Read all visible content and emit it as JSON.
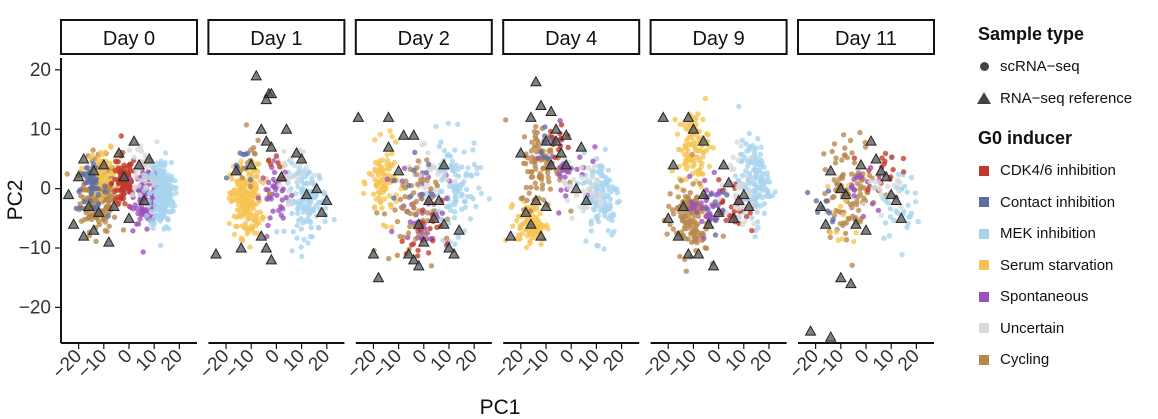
{
  "chart_data": {
    "type": "scatter",
    "xlabel": "PC1",
    "ylabel": "PC2",
    "xlim": [
      -27,
      27
    ],
    "ylim": [
      -26,
      22
    ],
    "xticks": [
      -20,
      -10,
      0,
      10,
      20
    ],
    "xtick_labels": [
      "-20",
      "-10",
      "0",
      "10",
      "20"
    ],
    "yticks": [
      -20,
      -10,
      0,
      10,
      20
    ],
    "ytick_labels": [
      "-20",
      "-10",
      "0",
      "10",
      "20"
    ],
    "panels": [
      {
        "label": "Day 0",
        "clusters": [
          {
            "group": "Cycling",
            "n": 220,
            "cx": -12,
            "cy": -1,
            "sx": 6,
            "sy": 5
          },
          {
            "group": "Serum starvation",
            "n": 70,
            "cx": -10,
            "cy": 3,
            "sx": 5,
            "sy": 3
          },
          {
            "group": "Contact inhibition",
            "n": 40,
            "cx": -15,
            "cy": 0,
            "sx": 5,
            "sy": 3
          },
          {
            "group": "CDK4/6 inhibition",
            "n": 80,
            "cx": -2,
            "cy": 1,
            "sx": 4,
            "sy": 4
          },
          {
            "group": "Spontaneous",
            "n": 130,
            "cx": 7,
            "cy": -1,
            "sx": 4,
            "sy": 4
          },
          {
            "group": "Uncertain",
            "n": 40,
            "cx": 5,
            "cy": 3,
            "sx": 5,
            "sy": 4
          },
          {
            "group": "MEK inhibition",
            "n": 200,
            "cx": 13,
            "cy": -1,
            "sx": 4,
            "sy": 5
          }
        ],
        "reference": [
          [
            -22,
            -6
          ],
          [
            -18,
            -8
          ],
          [
            -14,
            -7
          ],
          [
            -20,
            2
          ],
          [
            -18,
            5
          ],
          [
            -14,
            3
          ],
          [
            -12,
            -4
          ],
          [
            -10,
            4
          ],
          [
            -8,
            -9
          ],
          [
            -6,
            -3
          ],
          [
            -4,
            6
          ],
          [
            -2,
            2
          ],
          [
            0,
            -5
          ],
          [
            2,
            8
          ],
          [
            4,
            4
          ],
          [
            6,
            -2
          ],
          [
            8,
            5
          ],
          [
            -16,
            -3
          ],
          [
            -24,
            -1
          ]
        ]
      },
      {
        "label": "Day 1",
        "clusters": [
          {
            "group": "Serum starvation",
            "n": 200,
            "cx": -12,
            "cy": -2,
            "sx": 5,
            "sy": 5
          },
          {
            "group": "MEK inhibition",
            "n": 130,
            "cx": 12,
            "cy": -2,
            "sx": 7,
            "sy": 5
          },
          {
            "group": "Spontaneous",
            "n": 40,
            "cx": 0,
            "cy": -1,
            "sx": 5,
            "sy": 4
          },
          {
            "group": "Uncertain",
            "n": 30,
            "cx": 5,
            "cy": 3,
            "sx": 6,
            "sy": 4
          },
          {
            "group": "Contact inhibition",
            "n": 12,
            "cx": -15,
            "cy": 4,
            "sx": 4,
            "sy": 3
          },
          {
            "group": "Cycling",
            "n": 15,
            "cx": -8,
            "cy": 4,
            "sx": 6,
            "sy": 5
          },
          {
            "group": "CDK4/6 inhibition",
            "n": 6,
            "cx": 0,
            "cy": 3,
            "sx": 5,
            "sy": 3
          }
        ],
        "reference": [
          [
            -8,
            19
          ],
          [
            -3,
            16
          ],
          [
            -4,
            15
          ],
          [
            -2,
            16
          ],
          [
            -6,
            10
          ],
          [
            -4,
            8
          ],
          [
            -2,
            7
          ],
          [
            4,
            10
          ],
          [
            8,
            6
          ],
          [
            10,
            5
          ],
          [
            12,
            -1
          ],
          [
            16,
            0
          ],
          [
            20,
            -2
          ],
          [
            18,
            -4
          ],
          [
            -14,
            -10
          ],
          [
            -6,
            -8
          ],
          [
            -4,
            -10
          ],
          [
            -2,
            -12
          ],
          [
            -24,
            -11
          ],
          [
            -10,
            4
          ],
          [
            -16,
            3
          ],
          [
            2,
            2
          ]
        ]
      },
      {
        "label": "Day 2",
        "clusters": [
          {
            "group": "Serum starvation",
            "n": 90,
            "cx": -16,
            "cy": 1,
            "sx": 5,
            "sy": 5
          },
          {
            "group": "MEK inhibition",
            "n": 100,
            "cx": 12,
            "cy": 0,
            "sx": 8,
            "sy": 7
          },
          {
            "group": "Spontaneous",
            "n": 45,
            "cx": 0,
            "cy": -3,
            "sx": 8,
            "sy": 6
          },
          {
            "group": "Uncertain",
            "n": 30,
            "cx": 2,
            "cy": 3,
            "sx": 8,
            "sy": 5
          },
          {
            "group": "Cycling",
            "n": 60,
            "cx": -6,
            "cy": -4,
            "sx": 9,
            "sy": 7
          },
          {
            "group": "CDK4/6 inhibition",
            "n": 20,
            "cx": 0,
            "cy": -8,
            "sx": 6,
            "sy": 5
          },
          {
            "group": "Contact inhibition",
            "n": 10,
            "cx": -4,
            "cy": 0,
            "sx": 7,
            "sy": 5
          }
        ],
        "reference": [
          [
            -26,
            12
          ],
          [
            -14,
            12
          ],
          [
            -8,
            9
          ],
          [
            -4,
            9
          ],
          [
            -14,
            7
          ],
          [
            -18,
            -15
          ],
          [
            -6,
            -11
          ],
          [
            -4,
            -12
          ],
          [
            -2,
            -13
          ],
          [
            0,
            -9
          ],
          [
            4,
            -5
          ],
          [
            8,
            -6
          ],
          [
            10,
            -10
          ],
          [
            12,
            -11
          ],
          [
            6,
            -2
          ],
          [
            8,
            4
          ],
          [
            -20,
            -11
          ],
          [
            -10,
            3
          ],
          [
            2,
            -2
          ],
          [
            -2,
            -6
          ],
          [
            14,
            -7
          ]
        ]
      },
      {
        "label": "Day 4",
        "clusters": [
          {
            "group": "Serum starvation",
            "n": 90,
            "cx": -16,
            "cy": -6,
            "sx": 5,
            "sy": 3
          },
          {
            "group": "MEK inhibition",
            "n": 110,
            "cx": 12,
            "cy": -1,
            "sx": 6,
            "sy": 6
          },
          {
            "group": "Cycling",
            "n": 90,
            "cx": -12,
            "cy": 4,
            "sx": 7,
            "sy": 6
          },
          {
            "group": "Spontaneous",
            "n": 30,
            "cx": -2,
            "cy": 4,
            "sx": 8,
            "sy": 5
          },
          {
            "group": "Uncertain",
            "n": 30,
            "cx": 4,
            "cy": 0,
            "sx": 8,
            "sy": 4
          },
          {
            "group": "CDK4/6 inhibition",
            "n": 15,
            "cx": -6,
            "cy": 8,
            "sx": 6,
            "sy": 3
          },
          {
            "group": "Contact inhibition",
            "n": 8,
            "cx": -10,
            "cy": 8,
            "sx": 4,
            "sy": 3
          }
        ],
        "reference": [
          [
            -14,
            18
          ],
          [
            -12,
            14
          ],
          [
            -16,
            12
          ],
          [
            -8,
            13
          ],
          [
            -10,
            8
          ],
          [
            -6,
            8
          ],
          [
            -2,
            9
          ],
          [
            -4,
            6
          ],
          [
            -6,
            10
          ],
          [
            -8,
            4
          ],
          [
            4,
            7
          ],
          [
            6,
            -2
          ],
          [
            -24,
            -8
          ],
          [
            -16,
            -6
          ],
          [
            -10,
            -3
          ],
          [
            -14,
            -2
          ],
          [
            -2,
            4
          ],
          [
            2,
            0
          ],
          [
            -20,
            6
          ],
          [
            -18,
            -4
          ],
          [
            -12,
            -8
          ]
        ]
      },
      {
        "label": "Day 9",
        "clusters": [
          {
            "group": "Serum starvation",
            "n": 100,
            "cx": -10,
            "cy": 7,
            "sx": 5,
            "sy": 5
          },
          {
            "group": "MEK inhibition",
            "n": 140,
            "cx": 14,
            "cy": 1,
            "sx": 5,
            "sy": 6
          },
          {
            "group": "Cycling",
            "n": 130,
            "cx": -12,
            "cy": -5,
            "sx": 7,
            "sy": 5
          },
          {
            "group": "Spontaneous",
            "n": 40,
            "cx": -4,
            "cy": -3,
            "sx": 6,
            "sy": 4
          },
          {
            "group": "CDK4/6 inhibition",
            "n": 25,
            "cx": 6,
            "cy": -3,
            "sx": 5,
            "sy": 4
          },
          {
            "group": "Uncertain",
            "n": 35,
            "cx": 8,
            "cy": 0,
            "sx": 6,
            "sy": 6
          },
          {
            "group": "Contact inhibition",
            "n": 8,
            "cx": 0,
            "cy": -2,
            "sx": 6,
            "sy": 5
          }
        ],
        "reference": [
          [
            -22,
            12
          ],
          [
            -12,
            12
          ],
          [
            -10,
            10
          ],
          [
            -6,
            8
          ],
          [
            2,
            4
          ],
          [
            4,
            1
          ],
          [
            8,
            -2
          ],
          [
            10,
            -1
          ],
          [
            12,
            -3
          ],
          [
            0,
            -4
          ],
          [
            -20,
            -5
          ],
          [
            -16,
            -8
          ],
          [
            -12,
            -11
          ],
          [
            -8,
            -11
          ],
          [
            -2,
            -13
          ],
          [
            -14,
            -3
          ],
          [
            -6,
            -1
          ],
          [
            6,
            -5
          ],
          [
            -18,
            4
          ],
          [
            -4,
            -6
          ]
        ]
      },
      {
        "label": "Day 11",
        "clusters": [
          {
            "group": "Cycling",
            "n": 100,
            "cx": -6,
            "cy": 0,
            "sx": 9,
            "sy": 7
          },
          {
            "group": "Serum starvation",
            "n": 12,
            "cx": -10,
            "cy": -5,
            "sx": 6,
            "sy": 7
          },
          {
            "group": "MEK inhibition",
            "n": 35,
            "cx": 12,
            "cy": -2,
            "sx": 6,
            "sy": 5
          },
          {
            "group": "CDK4/6 inhibition",
            "n": 20,
            "cx": 6,
            "cy": 3,
            "sx": 6,
            "sy": 4
          },
          {
            "group": "Spontaneous",
            "n": 15,
            "cx": 0,
            "cy": 0,
            "sx": 8,
            "sy": 4
          },
          {
            "group": "Uncertain",
            "n": 20,
            "cx": 6,
            "cy": 0,
            "sx": 8,
            "sy": 4
          },
          {
            "group": "Contact inhibition",
            "n": 10,
            "cx": -16,
            "cy": -2,
            "sx": 5,
            "sy": 4
          }
        ],
        "reference": [
          [
            -14,
            3
          ],
          [
            -18,
            -3
          ],
          [
            -10,
            0
          ],
          [
            -8,
            -1
          ],
          [
            -2,
            4
          ],
          [
            2,
            8
          ],
          [
            4,
            5
          ],
          [
            6,
            3
          ],
          [
            8,
            2
          ],
          [
            10,
            -1
          ],
          [
            12,
            -2
          ],
          [
            -4,
            -6
          ],
          [
            0,
            -7
          ],
          [
            -6,
            -16
          ],
          [
            -10,
            -15
          ],
          [
            -22,
            -24
          ],
          [
            -14,
            -25
          ],
          [
            -16,
            -6
          ],
          [
            14,
            -5
          ]
        ]
      }
    ],
    "legend": {
      "sample_type": {
        "title": "Sample type",
        "items": [
          {
            "label": "scRNA−seq",
            "shape": "circle"
          },
          {
            "label": "RNA−seq reference",
            "shape": "triangle"
          }
        ]
      },
      "g0_inducer": {
        "title": "G0 inducer",
        "items": [
          {
            "label": "CDK4/6 inhibition",
            "color": "#c0392b"
          },
          {
            "label": "Contact inhibition",
            "color": "#5b6fa6"
          },
          {
            "label": "MEK inhibition",
            "color": "#a8d4ee"
          },
          {
            "label": "Serum starvation",
            "color": "#f6c453"
          },
          {
            "label": "Spontaneous",
            "color": "#9b51b9"
          },
          {
            "label": "Uncertain",
            "color": "#d9d9d9"
          },
          {
            "label": "Cycling",
            "color": "#b8874a"
          }
        ]
      },
      "position": "right"
    }
  }
}
